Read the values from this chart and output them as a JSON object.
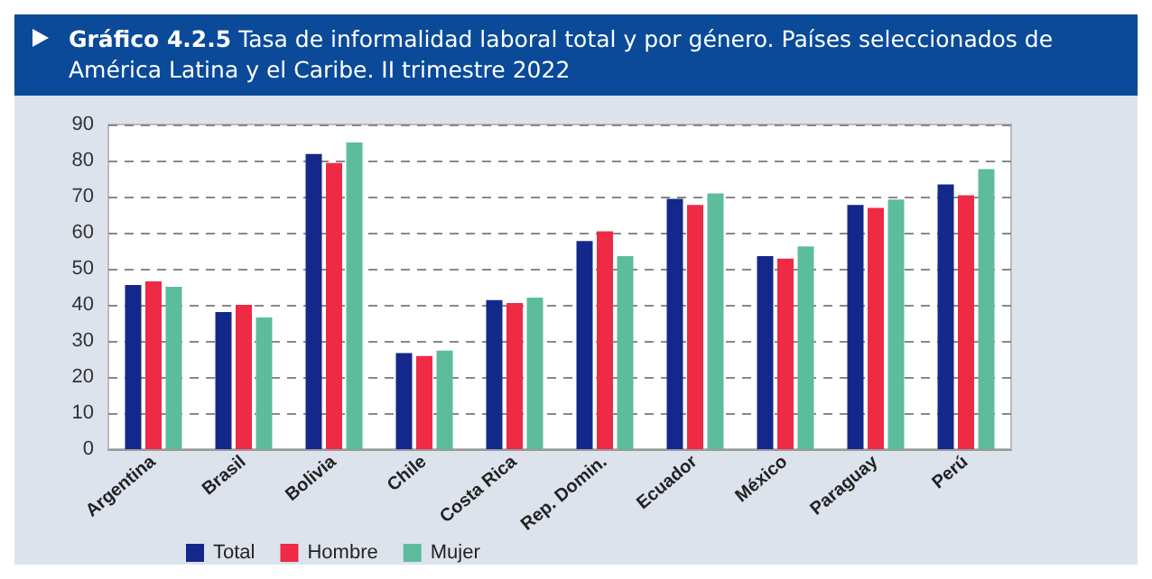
{
  "chart_data": {
    "type": "bar",
    "title": "Gráfico 4.2.5",
    "subtitle": "Tasa de informalidad laboral total y por género. Países seleccionados de América Latina y el Caribe. II trimestre 2022",
    "categories": [
      "Argentina",
      "Brasil",
      "Bolivia",
      "Chile",
      "Costa Rica",
      "Rep. Domin.",
      "Ecuador",
      "México",
      "Paraguay",
      "Perú"
    ],
    "series": [
      {
        "name": "Total",
        "color": "#13288a",
        "values": [
          45.5,
          38,
          81.8,
          26.6,
          41.3,
          57.7,
          69.4,
          53.5,
          67.7,
          73.4
        ]
      },
      {
        "name": "Hombre",
        "color": "#ee2a45",
        "values": [
          46.5,
          40,
          79.3,
          25.8,
          40.5,
          60.4,
          67.7,
          52.8,
          66.9,
          70.4
        ]
      },
      {
        "name": "Mujer",
        "color": "#5dbc9c",
        "values": [
          45,
          36.5,
          85,
          27.3,
          42,
          53.5,
          70.9,
          56.2,
          69.2,
          77.6
        ]
      }
    ],
    "ylim": [
      0,
      90
    ],
    "yticks": [
      0,
      10,
      20,
      30,
      40,
      50,
      60,
      70,
      80,
      90
    ],
    "grid": "y",
    "legend": "bottom"
  }
}
